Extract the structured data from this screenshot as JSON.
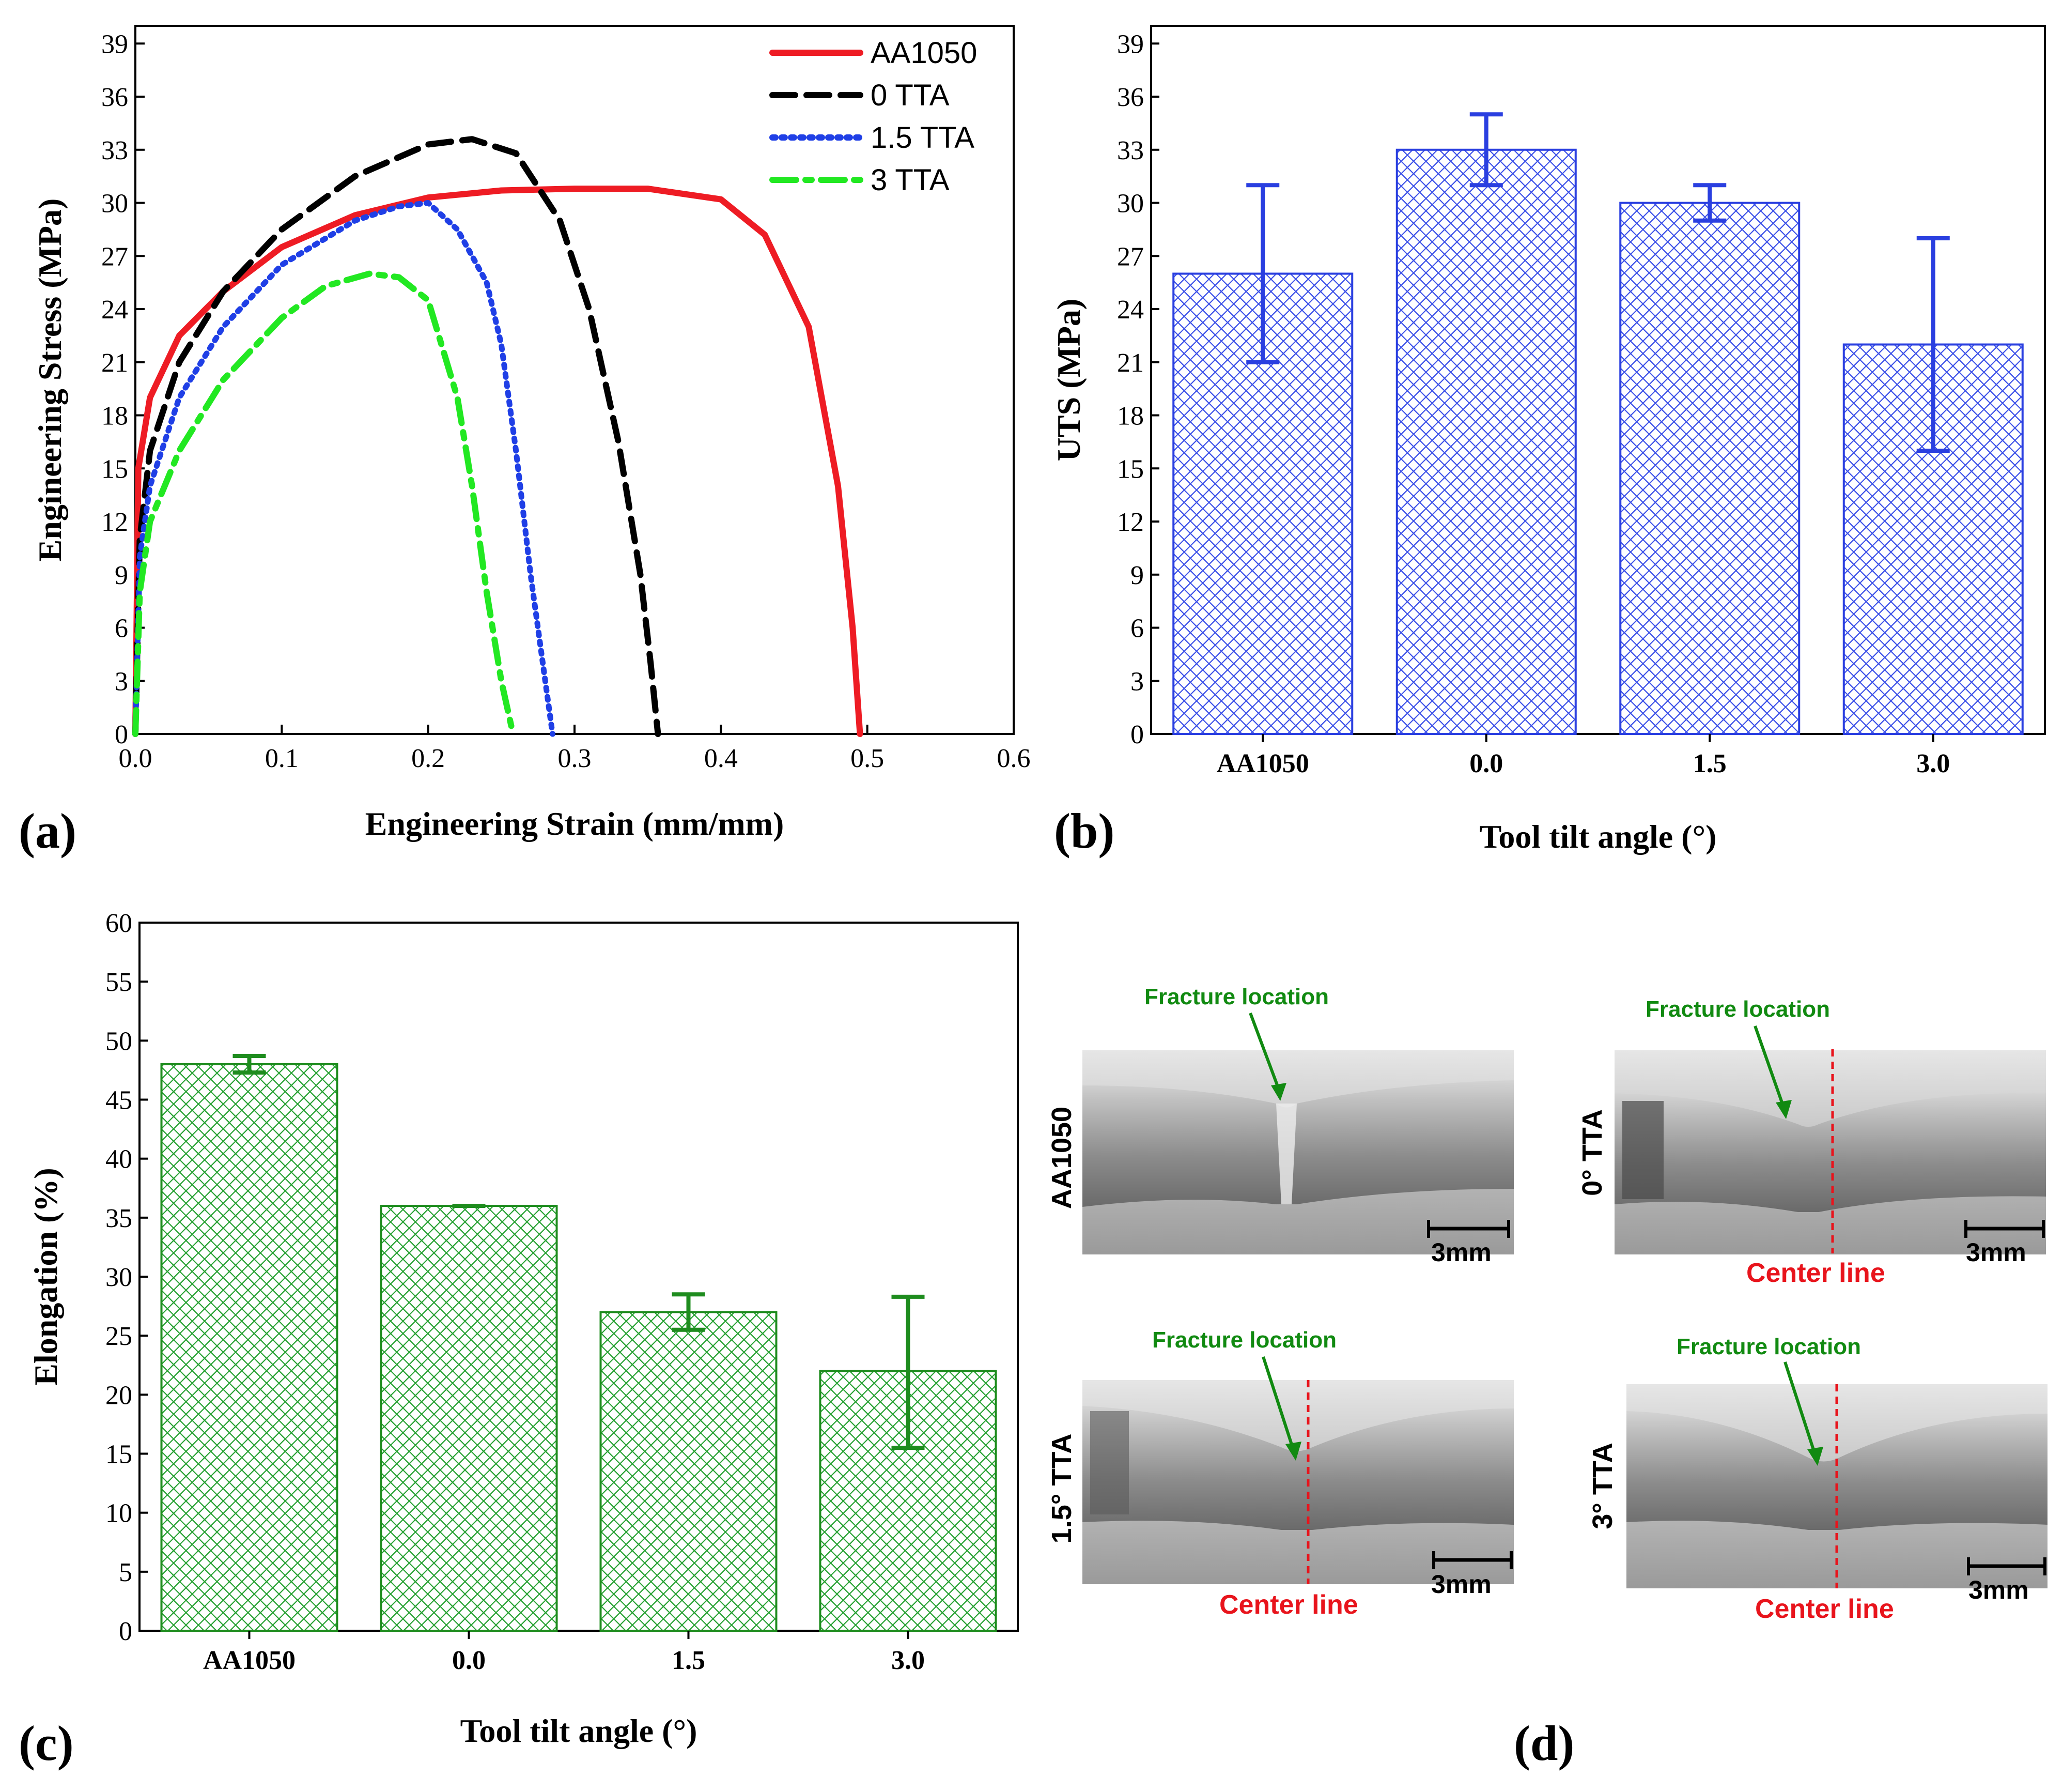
{
  "chart_data": [
    {
      "panel": "(a)",
      "type": "line",
      "xlabel": "Engineering Strain (mm/mm)",
      "ylabel": "Engineering Stress (MPa)",
      "xlim": [
        0,
        0.6
      ],
      "ylim": [
        0,
        40
      ],
      "xticks": [
        "0.0",
        "0.1",
        "0.2",
        "0.3",
        "0.4",
        "0.5",
        "0.6"
      ],
      "yticks": [
        "0",
        "3",
        "6",
        "9",
        "12",
        "15",
        "18",
        "21",
        "24",
        "27",
        "30",
        "33",
        "36",
        "39"
      ],
      "legend_position": "top-right",
      "series": [
        {
          "name": "AA1050",
          "color": "#ee1c24",
          "style": "solid",
          "x": [
            0,
            0.002,
            0.01,
            0.03,
            0.06,
            0.1,
            0.15,
            0.2,
            0.25,
            0.3,
            0.35,
            0.4,
            0.43,
            0.46,
            0.48,
            0.49,
            0.495
          ],
          "y": [
            0,
            15,
            19,
            22.5,
            25,
            27.5,
            29.3,
            30.3,
            30.7,
            30.8,
            30.8,
            30.2,
            28.2,
            23,
            14,
            6,
            0
          ]
        },
        {
          "name": "0 TTA",
          "color": "#000000",
          "style": "dashed",
          "x": [
            0,
            0.003,
            0.01,
            0.03,
            0.06,
            0.1,
            0.15,
            0.2,
            0.23,
            0.26,
            0.29,
            0.31,
            0.33,
            0.345,
            0.352,
            0.357
          ],
          "y": [
            0,
            11,
            16,
            21,
            25,
            28.5,
            31.5,
            33.3,
            33.6,
            32.8,
            29,
            24,
            16.5,
            9,
            4,
            0
          ]
        },
        {
          "name": "1.5 TTA",
          "color": "#1f3fe6",
          "style": "dotted",
          "x": [
            0,
            0.003,
            0.01,
            0.03,
            0.06,
            0.1,
            0.15,
            0.18,
            0.2,
            0.22,
            0.24,
            0.25,
            0.26,
            0.27,
            0.28,
            0.285
          ],
          "y": [
            0,
            10,
            14,
            19,
            23,
            26.5,
            29,
            29.8,
            30,
            28.5,
            25.5,
            22,
            16,
            9,
            3,
            0
          ]
        },
        {
          "name": "3 TTA",
          "color": "#22e822",
          "style": "dashdot",
          "x": [
            0,
            0.003,
            0.01,
            0.03,
            0.06,
            0.1,
            0.13,
            0.16,
            0.18,
            0.2,
            0.22,
            0.23,
            0.24,
            0.25,
            0.258
          ],
          "y": [
            0,
            8,
            12,
            16,
            20,
            23.5,
            25.3,
            26,
            25.8,
            24.5,
            19,
            14,
            8,
            3,
            0
          ]
        }
      ]
    },
    {
      "panel": "(b)",
      "type": "bar",
      "xlabel": "Tool tilt angle (°)",
      "ylabel": "UTS (MPa)",
      "ylim": [
        0,
        40
      ],
      "yticks": [
        "0",
        "3",
        "6",
        "9",
        "12",
        "15",
        "18",
        "21",
        "24",
        "27",
        "30",
        "33",
        "36",
        "39"
      ],
      "categories": [
        "AA1050",
        "0.0",
        "1.5",
        "3.0"
      ],
      "values": [
        26,
        33,
        30,
        22
      ],
      "err_low": [
        21,
        31,
        29,
        16
      ],
      "err_high": [
        31,
        35,
        31,
        28
      ],
      "color": "#2a3fe0",
      "fill": "crosshatch"
    },
    {
      "panel": "(c)",
      "type": "bar",
      "xlabel": "Tool tilt angle (°)",
      "ylabel": "Elongation (%)",
      "ylim": [
        0,
        60
      ],
      "yticks": [
        "0",
        "5",
        "10",
        "15",
        "20",
        "25",
        "30",
        "35",
        "40",
        "45",
        "50",
        "55",
        "60"
      ],
      "categories": [
        "AA1050",
        "0.0",
        "1.5",
        "3.0"
      ],
      "values": [
        48,
        36,
        27,
        22
      ],
      "err_low": [
        47.3,
        36,
        25.5,
        15.5
      ],
      "err_high": [
        48.7,
        36,
        28.5,
        28.3
      ],
      "color": "#1e8c1e",
      "fill": "crosshatch"
    }
  ],
  "panel_d": {
    "label": "(d)",
    "fracture_label": "Fracture location",
    "center_label": "Center line",
    "scale_label": "3mm",
    "specimens": [
      "AA1050",
      "0° TTA",
      "1.5° TTA",
      "3° TTA"
    ]
  }
}
